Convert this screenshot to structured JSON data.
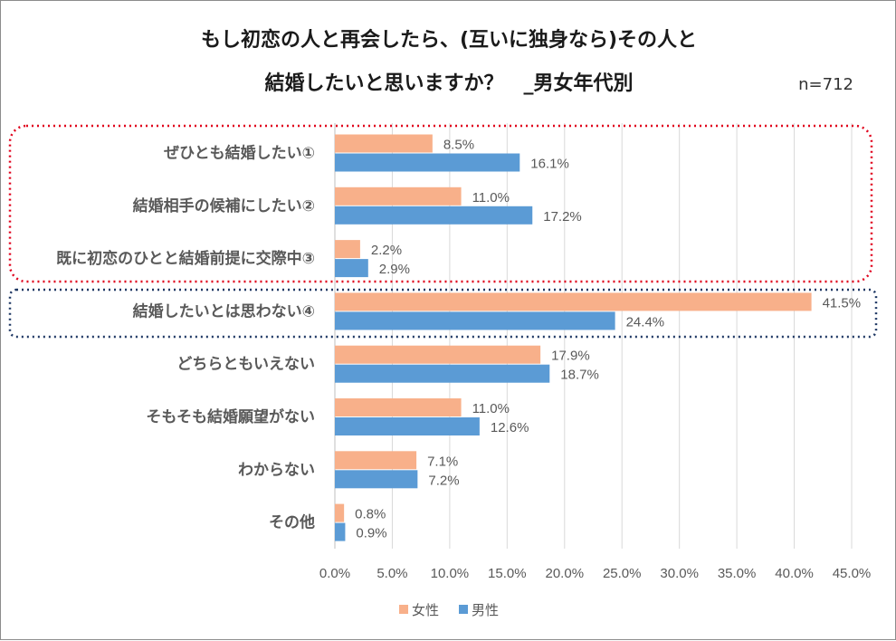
{
  "chart_data": {
    "type": "bar",
    "orientation": "horizontal",
    "title_line1": "もし初恋の人と再会したら、(互いに独身なら)その人と",
    "title_line2": "結婚したいと思いますか？　_男女年代別",
    "sample_size": "n=712",
    "categories": [
      "ぜひとも結婚したい①",
      "結婚相手の候補にしたい②",
      "既に初恋のひとと結婚前提に交際中③",
      "結婚したいとは思わない④",
      "どちらともいえない",
      "そもそも結婚願望がない",
      "わからない",
      "その他"
    ],
    "series": [
      {
        "name": "女性",
        "color": "#F8B08A",
        "values": [
          8.5,
          11.0,
          2.2,
          41.5,
          17.9,
          11.0,
          7.1,
          0.8
        ],
        "labels": [
          "8.5%",
          "11.0%",
          "2.2%",
          "41.5%",
          "17.9%",
          "11.0%",
          "7.1%",
          "0.8%"
        ]
      },
      {
        "name": "男性",
        "color": "#5B9BD5",
        "values": [
          16.1,
          17.2,
          2.9,
          24.4,
          18.7,
          12.6,
          7.2,
          0.9
        ],
        "labels": [
          "16.1%",
          "17.2%",
          "2.9%",
          "24.4%",
          "18.7%",
          "12.6%",
          "7.2%",
          "0.9%"
        ]
      }
    ],
    "xlim": [
      0,
      45
    ],
    "xticks": [
      0,
      5,
      10,
      15,
      20,
      25,
      30,
      35,
      40,
      45
    ],
    "xtick_labels": [
      "0.0%",
      "5.0%",
      "10.0%",
      "15.0%",
      "20.0%",
      "25.0%",
      "30.0%",
      "35.0%",
      "40.0%",
      "45.0%"
    ],
    "grid": true,
    "legend_position": "bottom",
    "highlight_groups": [
      {
        "name": "red-dotted-box",
        "color": "#E0001B",
        "covers": [
          "ぜひとも結婚したい①",
          "結婚相手の候補にしたい②",
          "既に初恋のひとと結婚前提に交際中③"
        ]
      },
      {
        "name": "navy-dotted-box",
        "color": "#1F3864",
        "covers": [
          "結婚したいとは思わない④"
        ]
      }
    ]
  }
}
